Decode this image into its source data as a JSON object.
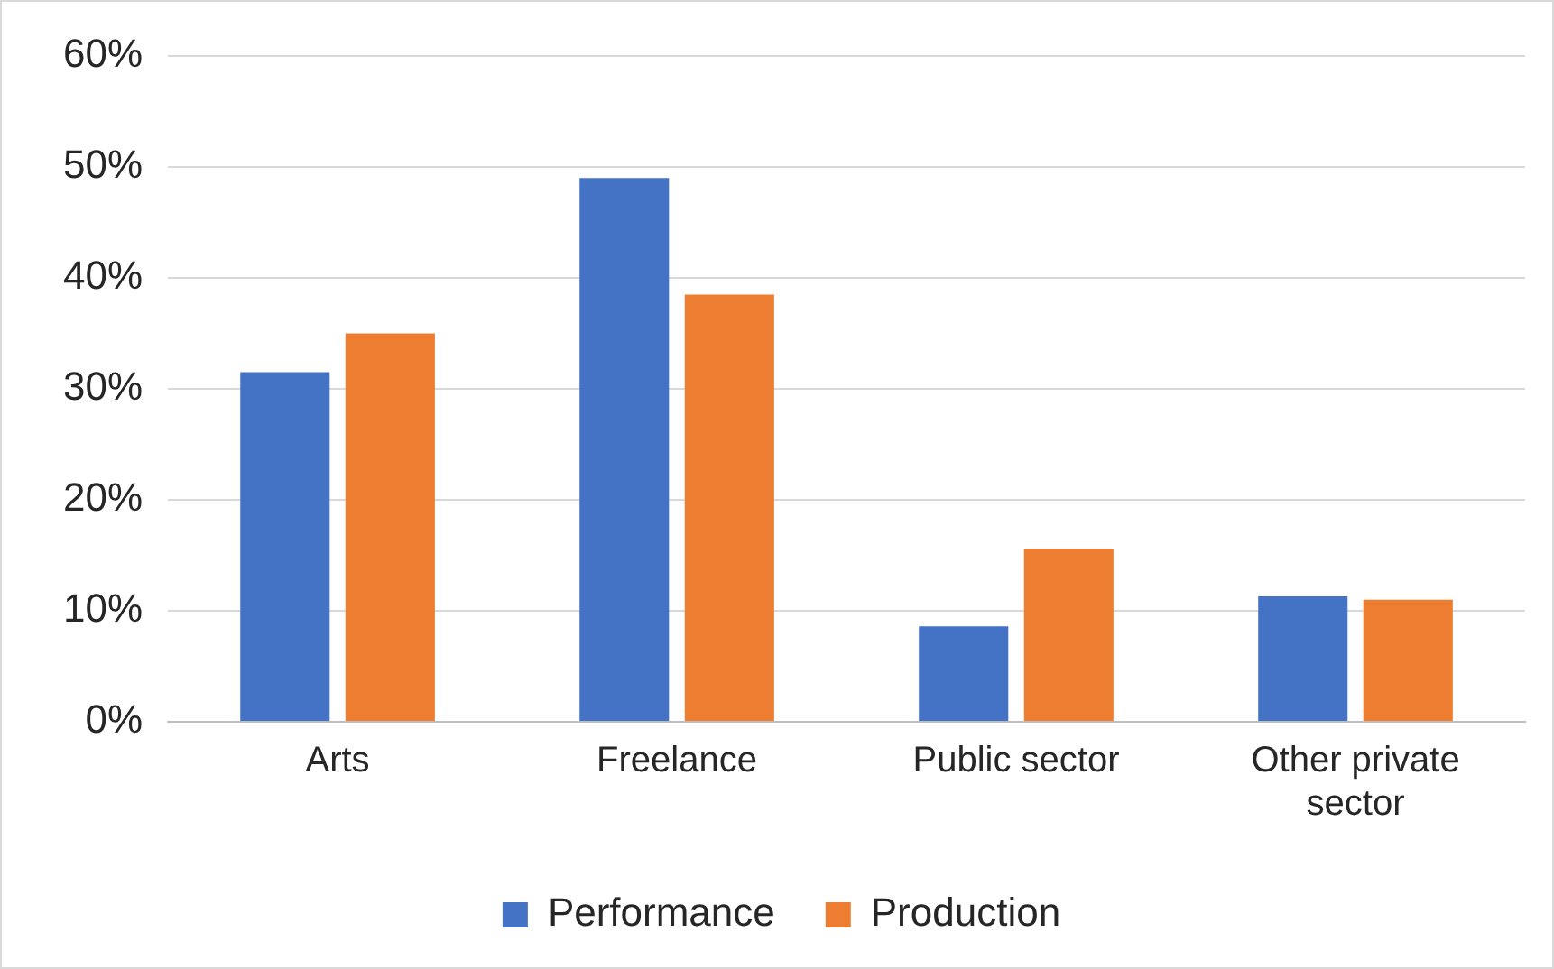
{
  "chart_data": {
    "type": "bar",
    "categories": [
      "Arts",
      "Freelance",
      "Public sector",
      "Other private sector"
    ],
    "series": [
      {
        "name": "Performance",
        "color": "#4472c4",
        "values": [
          31.5,
          49,
          8.6,
          11.3
        ]
      },
      {
        "name": "Production",
        "color": "#ed7d31",
        "values": [
          35,
          38.5,
          15.6,
          11
        ]
      }
    ],
    "ylim": [
      0,
      60
    ],
    "yticks": [
      {
        "value": 0,
        "label": "0%"
      },
      {
        "value": 10,
        "label": "10%"
      },
      {
        "value": 20,
        "label": "20%"
      },
      {
        "value": 30,
        "label": "30%"
      },
      {
        "value": 40,
        "label": "40%"
      },
      {
        "value": 50,
        "label": "50%"
      },
      {
        "value": 60,
        "label": "60%"
      }
    ],
    "grid": "y",
    "legend": "bottom"
  }
}
